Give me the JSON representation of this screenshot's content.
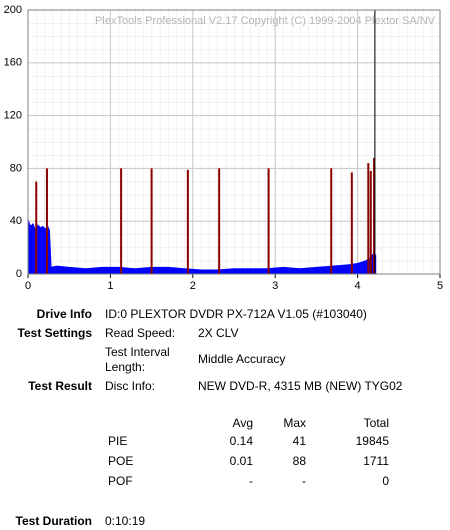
{
  "chart_data": {
    "type": "line",
    "watermark": "PlexTools Professional V2.17 Copyright (C) 1999-2004 Plextor SA/NV",
    "xlim": [
      0,
      5
    ],
    "xticks": [
      0,
      1,
      2,
      3,
      4,
      5
    ],
    "ylim": [
      0,
      200
    ],
    "yticks": [
      0,
      40,
      80,
      120,
      160,
      200
    ],
    "grid": true,
    "marker_x": 4.21,
    "marker_color": "#000000",
    "series": [
      {
        "style": "area",
        "color": "#0000ff",
        "x": [
          0,
          0.03,
          0.06,
          0.09,
          0.12,
          0.15,
          0.18,
          0.21,
          0.24,
          0.26,
          0.28,
          0.35,
          0.5,
          0.7,
          0.9,
          1.1,
          1.3,
          1.5,
          1.7,
          1.9,
          2.1,
          2.3,
          2.5,
          2.7,
          2.9,
          3.1,
          3.3,
          3.5,
          3.7,
          3.9,
          4.0,
          4.1,
          4.15,
          4.2,
          4.22
        ],
        "values": [
          41,
          36,
          38,
          33,
          37,
          35,
          36,
          34,
          36,
          33,
          5,
          6,
          5,
          4,
          5,
          5,
          4,
          5,
          5,
          4,
          3,
          3,
          4,
          4,
          4,
          5,
          4,
          5,
          6,
          7,
          8,
          10,
          12,
          16,
          14
        ]
      },
      {
        "style": "spike",
        "color": "#8b0000",
        "x": [
          0.1,
          0.23,
          1.13,
          1.5,
          1.94,
          2.32,
          2.92,
          3.68,
          3.93,
          4.13,
          4.16,
          4.2
        ],
        "values": [
          70,
          80,
          80,
          80,
          79,
          80,
          80,
          80,
          77,
          84,
          78,
          88
        ]
      }
    ]
  },
  "info": {
    "drive": {
      "label": "Drive Info",
      "value": "ID:0 PLEXTOR DVDR PX-712A V1.05 (#103040)"
    },
    "settings": {
      "label": "Test Settings",
      "speed_label": "Read Speed:",
      "speed": "2X CLV",
      "interval_label": "Test Interval Length:",
      "interval": "Middle Accuracy"
    },
    "result": {
      "label": "Test Result",
      "disc_label": "Disc Info:",
      "disc": "NEW DVD-R, 4315 MB (NEW) TYG02"
    },
    "stats": {
      "columns": [
        "Avg",
        "Max",
        "Total"
      ],
      "rows": [
        {
          "name": "PIE",
          "values": [
            0.14,
            41,
            19845
          ]
        },
        {
          "name": "POE",
          "values": [
            0.01,
            88,
            1711
          ]
        },
        {
          "name": "POF",
          "values": [
            "-",
            "-",
            0
          ]
        }
      ]
    },
    "duration": {
      "label": "Test Duration",
      "value": "0:10:19"
    }
  }
}
